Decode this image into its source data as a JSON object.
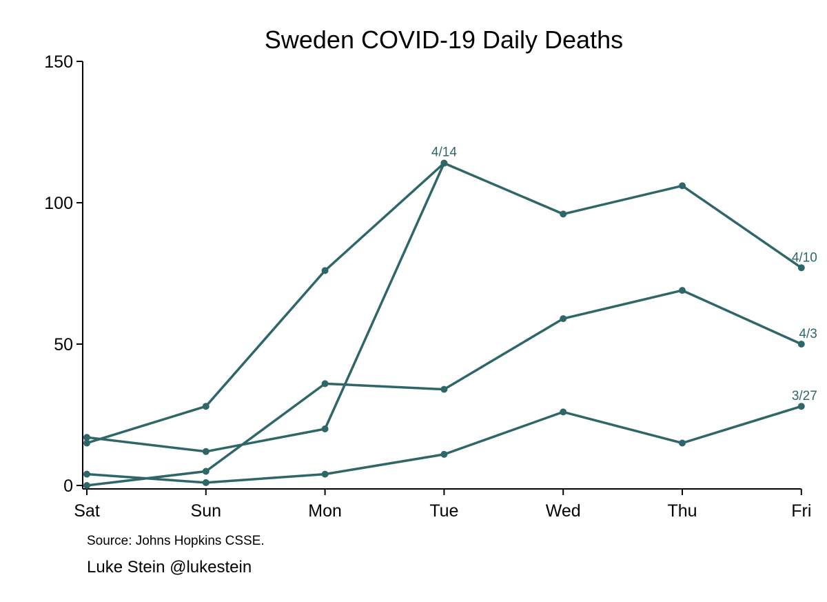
{
  "chart_data": {
    "type": "line",
    "title": "Sweden COVID-19 Daily Deaths",
    "xlabel": "",
    "ylabel": "",
    "categories": [
      "Sat",
      "Sun",
      "Mon",
      "Tue",
      "Wed",
      "Thu",
      "Fri"
    ],
    "yticks": [
      0,
      50,
      100,
      150
    ],
    "ylim": [
      0,
      150
    ],
    "grid": false,
    "legend": "none (series labeled at line ends)",
    "color": "#2f6668",
    "series": [
      {
        "name": "3/27",
        "values": [
          4,
          1,
          4,
          11,
          26,
          15,
          28
        ]
      },
      {
        "name": "4/3",
        "values": [
          0,
          5,
          36,
          34,
          59,
          69,
          50
        ]
      },
      {
        "name": "4/10",
        "values": [
          15,
          28,
          76,
          114,
          96,
          106,
          77
        ]
      },
      {
        "name": "4/14",
        "values": [
          17,
          12,
          20,
          114,
          null,
          null,
          null
        ]
      }
    ],
    "notes": {
      "source": "Source: Johns Hopkins CSSE.",
      "credit": "Luke Stein @lukestein"
    }
  }
}
